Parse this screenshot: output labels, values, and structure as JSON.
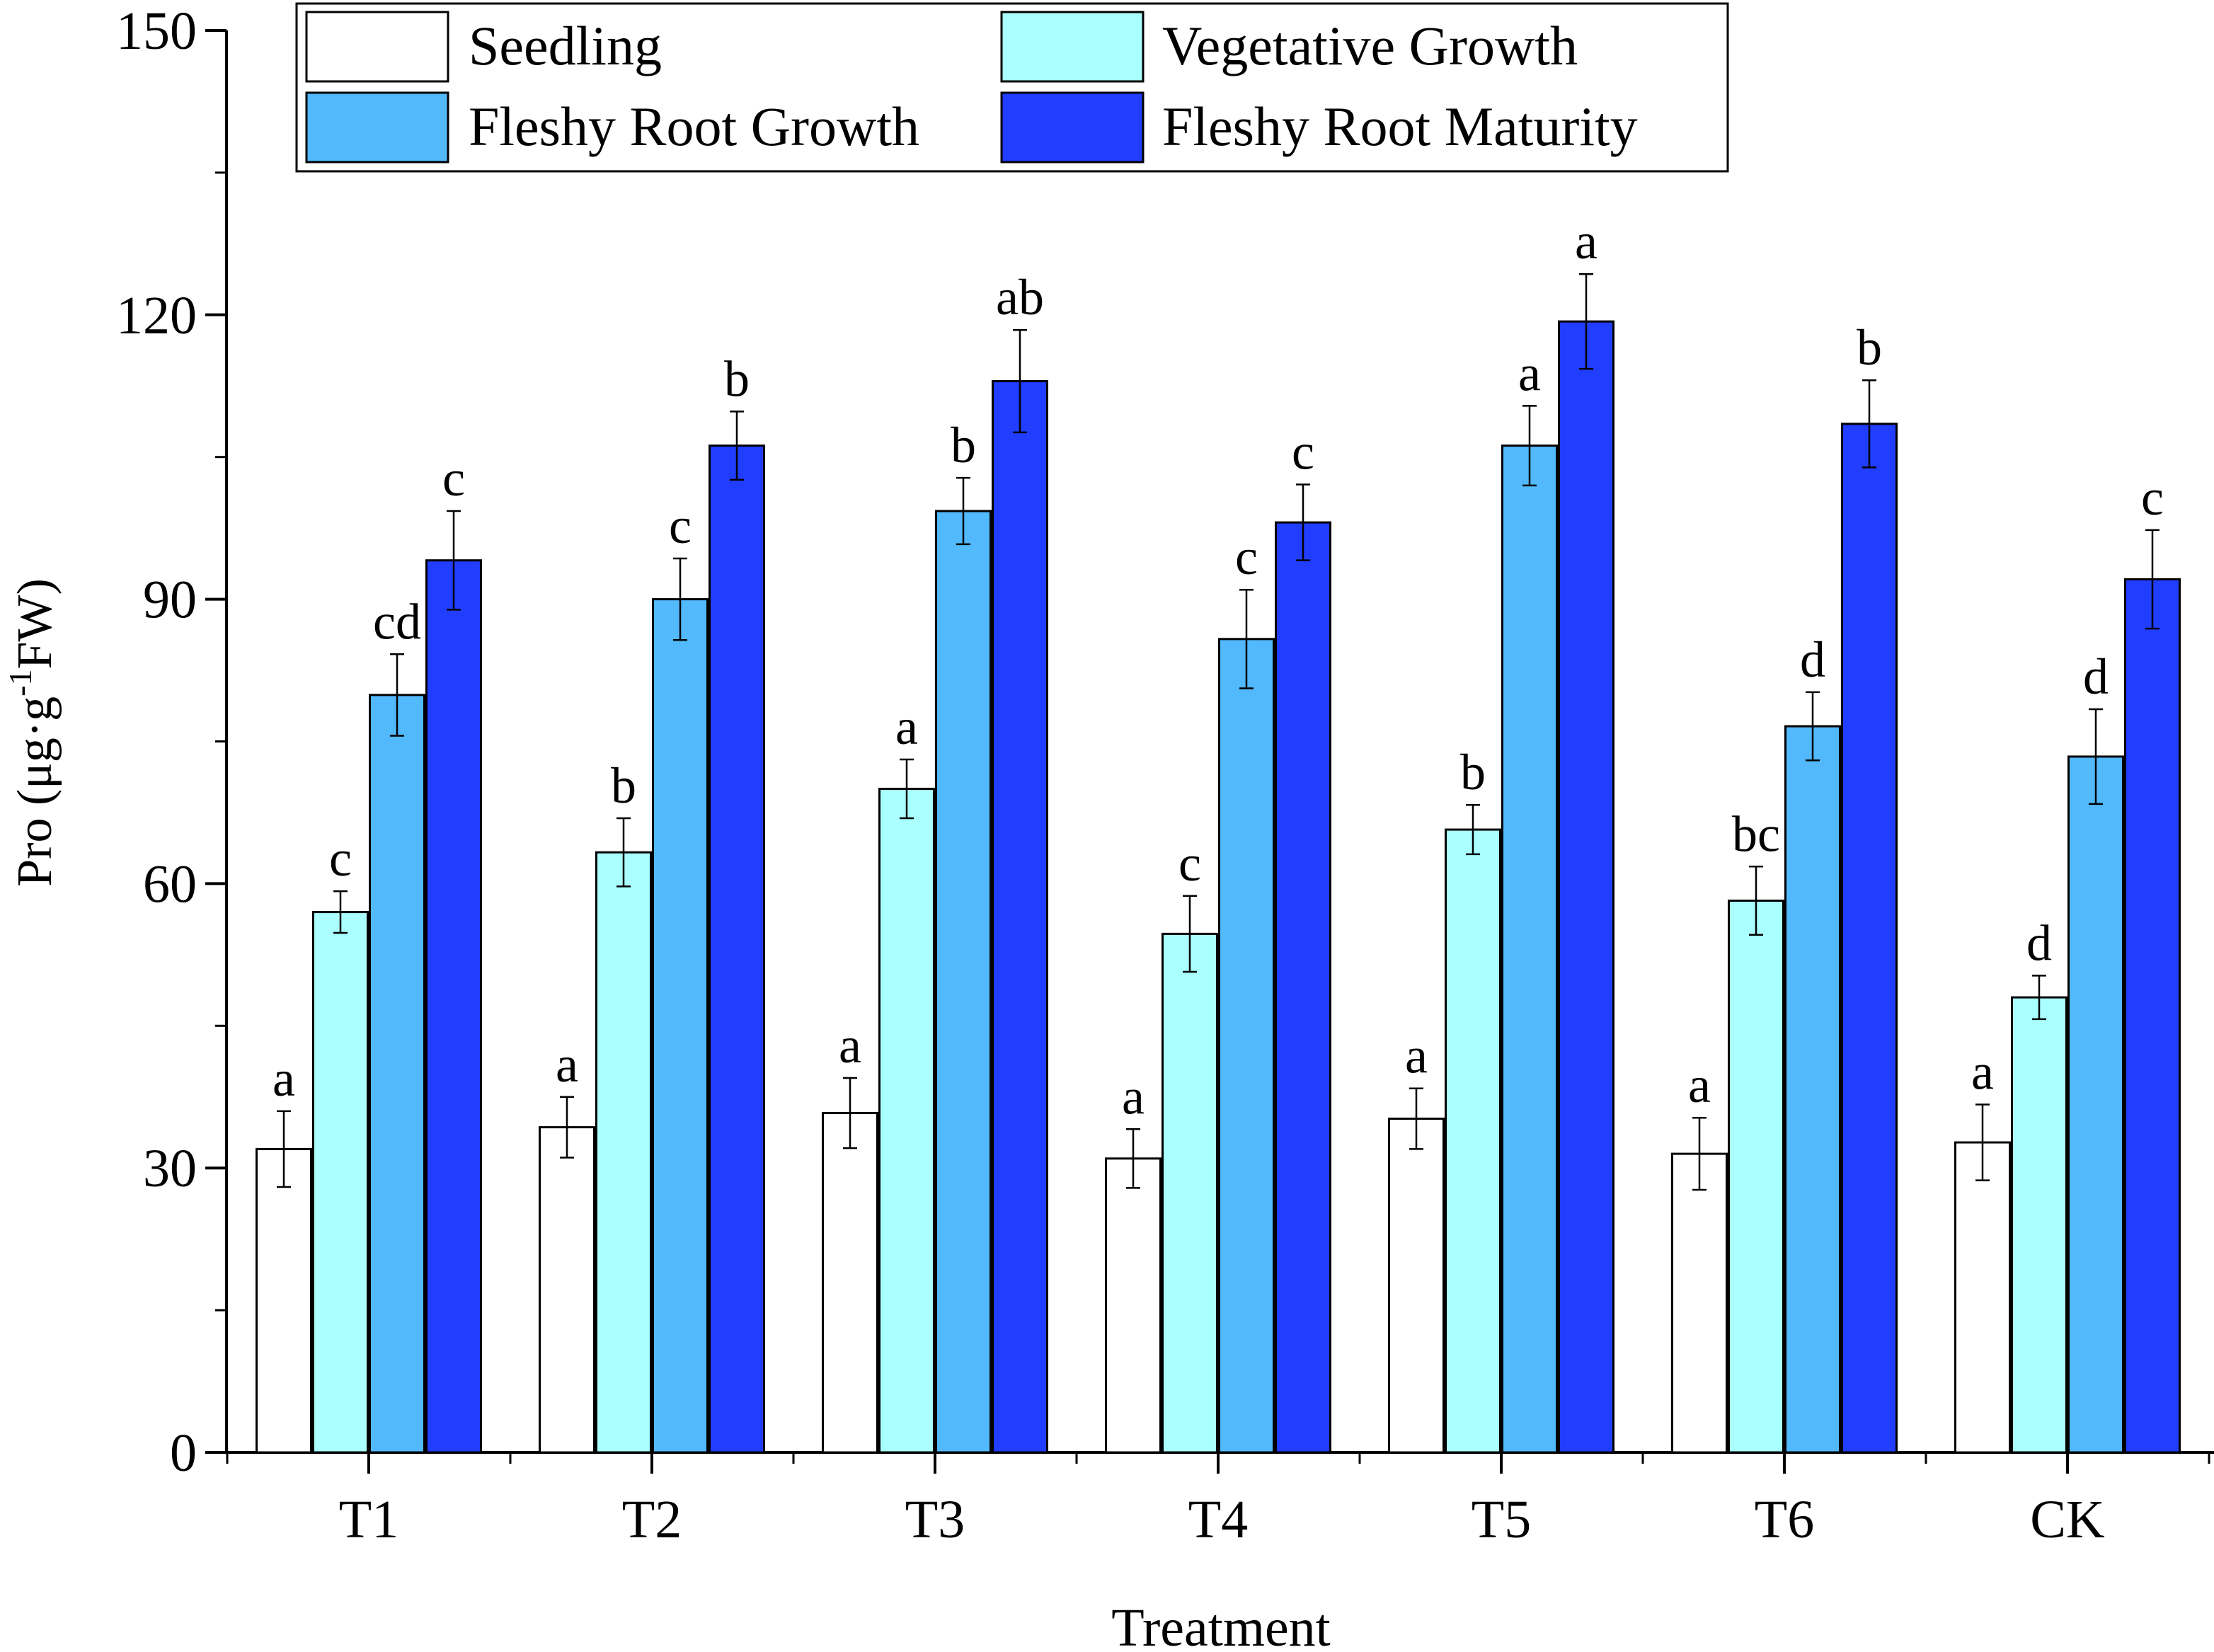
{
  "chart_data": {
    "type": "bar",
    "title": "",
    "xlabel": "Treatment",
    "ylabel": {
      "main": "Pro (μg·g",
      "sup": "-1",
      "tail": "FW)"
    },
    "ylim": [
      0,
      150
    ],
    "yticks": [
      "0",
      "30",
      "60",
      "90",
      "120",
      "150"
    ],
    "ytick_values": [
      0,
      30,
      60,
      90,
      120,
      150
    ],
    "categories": [
      "T1",
      "T2",
      "T3",
      "T4",
      "T5",
      "T6",
      "CK"
    ],
    "legend_position": "top-left",
    "series": [
      {
        "name": "Seedling",
        "color": "#ffffff",
        "values": [
          32,
          34.3,
          35.8,
          31,
          35.2,
          31.5,
          32.7
        ],
        "errors": [
          4,
          3.2,
          3.7,
          3.1,
          3.2,
          3.8,
          4
        ],
        "letters": [
          "a",
          "a",
          "a",
          "a",
          "a",
          "a",
          "a"
        ]
      },
      {
        "name": "Vegetative Growth",
        "color": "#aaffff",
        "values": [
          57,
          63.3,
          70,
          54.7,
          65.7,
          58.2,
          48
        ],
        "errors": [
          2.2,
          3.6,
          3.1,
          4,
          2.6,
          3.6,
          2.3
        ],
        "letters": [
          "c",
          "b",
          "a",
          "c",
          "b",
          "bc",
          "d"
        ]
      },
      {
        "name": "Fleshy Root Growth",
        "color": "#52b9fd",
        "values": [
          79.9,
          90,
          99.3,
          85.8,
          106.2,
          76.6,
          73.4
        ],
        "errors": [
          4.3,
          4.3,
          3.5,
          5.2,
          4.2,
          3.6,
          5
        ],
        "letters": [
          "cd",
          "c",
          "b",
          "c",
          "a",
          "d",
          "d"
        ]
      },
      {
        "name": "Fleshy Root Maturity",
        "color": "#213dfe",
        "values": [
          94.1,
          106.2,
          113,
          98.1,
          119.3,
          108.5,
          92.1
        ],
        "errors": [
          5.2,
          3.6,
          5.4,
          4,
          5,
          4.6,
          5.2
        ],
        "letters": [
          "c",
          "b",
          "ab",
          "c",
          "a",
          "b",
          "c"
        ]
      }
    ]
  }
}
